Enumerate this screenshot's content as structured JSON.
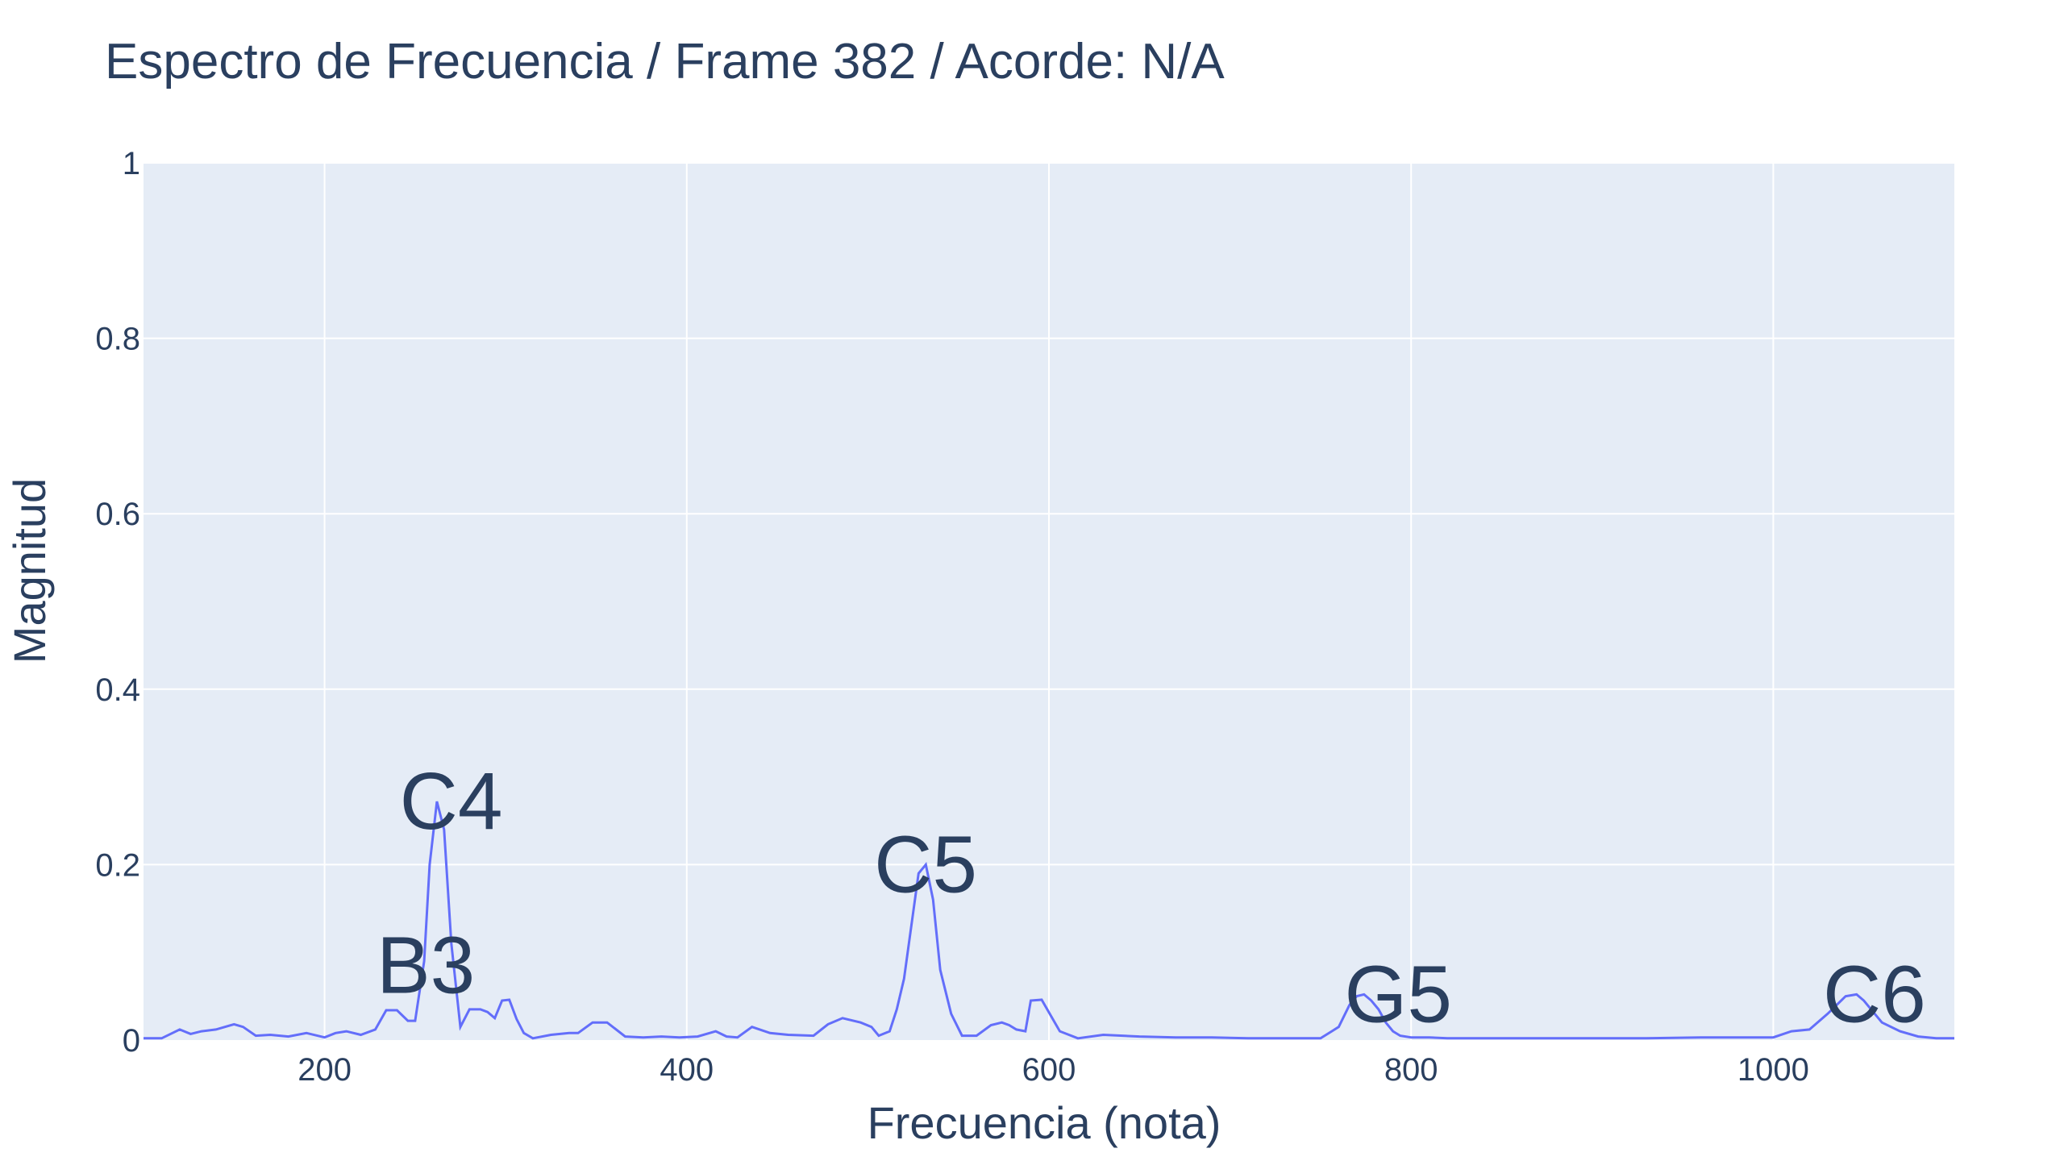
{
  "chart_data": {
    "type": "line",
    "title": "Espectro de Frecuencia / Frame 382 / Acorde: N/A",
    "xlabel": "Frecuencia (nota)",
    "ylabel": "Magnitud",
    "xlim": [
      100,
      1100
    ],
    "ylim": [
      0,
      1
    ],
    "grid": true,
    "legend": "none",
    "x_ticks": [
      {
        "value": 200,
        "label": "200"
      },
      {
        "value": 400,
        "label": "400"
      },
      {
        "value": 600,
        "label": "600"
      },
      {
        "value": 800,
        "label": "800"
      },
      {
        "value": 1000,
        "label": "1000"
      }
    ],
    "y_ticks": [
      {
        "value": 0,
        "label": "0"
      },
      {
        "value": 0.2,
        "label": "0.2"
      },
      {
        "value": 0.4,
        "label": "0.4"
      },
      {
        "value": 0.6,
        "label": "0.6"
      },
      {
        "value": 0.8,
        "label": "0.8"
      },
      {
        "value": 1,
        "label": "1"
      }
    ],
    "colors": {
      "line": "#636efa",
      "plot_bg": "#e5ecf6",
      "grid": "#ffffff",
      "text": "#2a3f5f"
    },
    "series": [
      {
        "x": [
          100,
          110,
          120,
          126,
          132,
          140,
          150,
          155,
          162,
          170,
          180,
          190,
          200,
          206,
          212,
          220,
          228,
          234,
          240,
          246,
          250,
          255,
          258,
          262,
          266,
          270,
          275,
          280,
          286,
          290,
          294,
          298,
          302,
          306,
          310,
          315,
          325,
          335,
          340,
          348,
          356,
          366,
          376,
          386,
          396,
          406,
          416,
          422,
          428,
          436,
          446,
          456,
          470,
          478,
          486,
          496,
          502,
          506,
          512,
          516,
          520,
          524,
          528,
          532,
          536,
          540,
          546,
          552,
          560,
          568,
          574,
          578,
          582,
          587,
          590,
          596,
          606,
          616,
          630,
          650,
          670,
          690,
          710,
          730,
          750,
          760,
          766,
          770,
          774,
          778,
          782,
          786,
          790,
          794,
          800,
          810,
          820,
          840,
          870,
          900,
          930,
          960,
          990,
          1000,
          1010,
          1020,
          1030,
          1040,
          1046,
          1050,
          1054,
          1060,
          1070,
          1080,
          1090,
          1100
        ],
        "y": [
          0.002,
          0.002,
          0.012,
          0.007,
          0.01,
          0.012,
          0.018,
          0.015,
          0.005,
          0.006,
          0.004,
          0.008,
          0.003,
          0.008,
          0.01,
          0.006,
          0.012,
          0.034,
          0.034,
          0.022,
          0.022,
          0.09,
          0.2,
          0.272,
          0.24,
          0.11,
          0.015,
          0.035,
          0.035,
          0.032,
          0.025,
          0.045,
          0.046,
          0.024,
          0.008,
          0.002,
          0.006,
          0.008,
          0.008,
          0.02,
          0.02,
          0.004,
          0.003,
          0.004,
          0.003,
          0.004,
          0.01,
          0.004,
          0.003,
          0.015,
          0.008,
          0.006,
          0.005,
          0.018,
          0.025,
          0.02,
          0.015,
          0.005,
          0.01,
          0.035,
          0.07,
          0.13,
          0.19,
          0.2,
          0.16,
          0.08,
          0.03,
          0.005,
          0.005,
          0.017,
          0.02,
          0.017,
          0.012,
          0.01,
          0.045,
          0.046,
          0.01,
          0.002,
          0.006,
          0.004,
          0.003,
          0.003,
          0.002,
          0.002,
          0.002,
          0.015,
          0.04,
          0.05,
          0.052,
          0.045,
          0.035,
          0.02,
          0.01,
          0.005,
          0.003,
          0.003,
          0.002,
          0.002,
          0.002,
          0.002,
          0.002,
          0.003,
          0.003,
          0.003,
          0.01,
          0.012,
          0.03,
          0.05,
          0.052,
          0.045,
          0.035,
          0.02,
          0.01,
          0.004,
          0.002,
          0.002
        ]
      }
    ],
    "annotations": [
      {
        "text": "C4",
        "x": 261,
        "y": 0.272
      },
      {
        "text": "B3",
        "x": 247,
        "y": 0.085
      },
      {
        "text": "C5",
        "x": 523,
        "y": 0.2
      },
      {
        "text": "G5",
        "x": 784,
        "y": 0.052
      },
      {
        "text": "C6",
        "x": 1047,
        "y": 0.052
      }
    ]
  }
}
